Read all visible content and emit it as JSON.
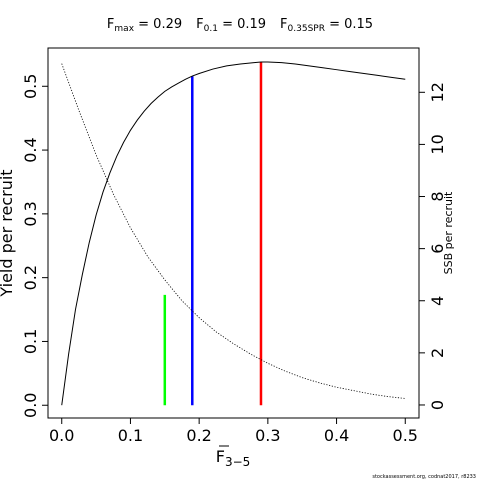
{
  "chart_data": {
    "type": "line",
    "title": {
      "fmax": {
        "base": "F",
        "sub": "max",
        "value": " = 0.29"
      },
      "f01": {
        "base": "F",
        "sub": "0.1",
        "value": " = 0.19"
      },
      "fspr": {
        "base": "F",
        "sub": "0.35SPR",
        "value": " = 0.15"
      }
    },
    "xlabel": {
      "base": "F",
      "sub": "3−5"
    },
    "ylabel": "Yield per recruit",
    "ylabel_right": "SSB per recruit",
    "xlim": [
      -0.02,
      0.52
    ],
    "ylim": [
      -0.02,
      0.56
    ],
    "ylim_right": [
      -0.5,
      13.7
    ],
    "xticks": [
      0.0,
      0.1,
      0.2,
      0.3,
      0.4,
      0.5
    ],
    "xtick_labels": [
      "0.0",
      "0.1",
      "0.2",
      "0.3",
      "0.4",
      "0.5"
    ],
    "yticks": [
      0.0,
      0.1,
      0.2,
      0.3,
      0.4,
      0.5
    ],
    "ytick_labels": [
      "0.0",
      "0.1",
      "0.2",
      "0.3",
      "0.4",
      "0.5"
    ],
    "yticks_right": [
      0,
      2,
      4,
      6,
      8,
      10,
      12
    ],
    "ytick_labels_right": [
      "0",
      "2",
      "4",
      "6",
      "8",
      "10",
      "12"
    ],
    "grid": false,
    "series": [
      {
        "axis": "left",
        "style": "solid",
        "color": "#000000",
        "x": [
          0.0,
          0.01,
          0.02,
          0.03,
          0.04,
          0.05,
          0.06,
          0.07,
          0.08,
          0.09,
          0.1,
          0.11,
          0.12,
          0.13,
          0.14,
          0.15,
          0.16,
          0.17,
          0.18,
          0.19,
          0.2,
          0.22,
          0.24,
          0.26,
          0.28,
          0.29,
          0.3,
          0.32,
          0.34,
          0.36,
          0.38,
          0.4,
          0.42,
          0.44,
          0.46,
          0.48,
          0.5
        ],
        "y": [
          0.0,
          0.08,
          0.15,
          0.205,
          0.255,
          0.298,
          0.334,
          0.364,
          0.39,
          0.412,
          0.431,
          0.447,
          0.461,
          0.473,
          0.483,
          0.492,
          0.499,
          0.505,
          0.511,
          0.516,
          0.52,
          0.527,
          0.532,
          0.535,
          0.537,
          0.538,
          0.538,
          0.537,
          0.535,
          0.532,
          0.529,
          0.526,
          0.523,
          0.52,
          0.517,
          0.514,
          0.511
        ]
      },
      {
        "axis": "right",
        "style": "dotted",
        "color": "#000000",
        "x": [
          0.0,
          0.025,
          0.05,
          0.075,
          0.1,
          0.125,
          0.15,
          0.175,
          0.2,
          0.225,
          0.25,
          0.275,
          0.3,
          0.325,
          0.35,
          0.375,
          0.4,
          0.425,
          0.45,
          0.475,
          0.5
        ],
        "y": [
          13.1,
          11.3,
          9.6,
          8.1,
          6.8,
          5.7,
          4.8,
          4.0,
          3.35,
          2.8,
          2.35,
          1.95,
          1.6,
          1.3,
          1.05,
          0.85,
          0.68,
          0.55,
          0.42,
          0.32,
          0.25
        ]
      }
    ],
    "reference_lines": [
      {
        "label": "F0.35SPR",
        "x": 0.15,
        "y": 0.173,
        "color": "#00ff00"
      },
      {
        "label": "F0.1",
        "x": 0.19,
        "y": 0.516,
        "color": "#0000ff"
      },
      {
        "label": "Fmax",
        "x": 0.29,
        "y": 0.538,
        "color": "#ff0000"
      }
    ]
  },
  "footer": "stockassessment.org, codnat2017, r8233"
}
